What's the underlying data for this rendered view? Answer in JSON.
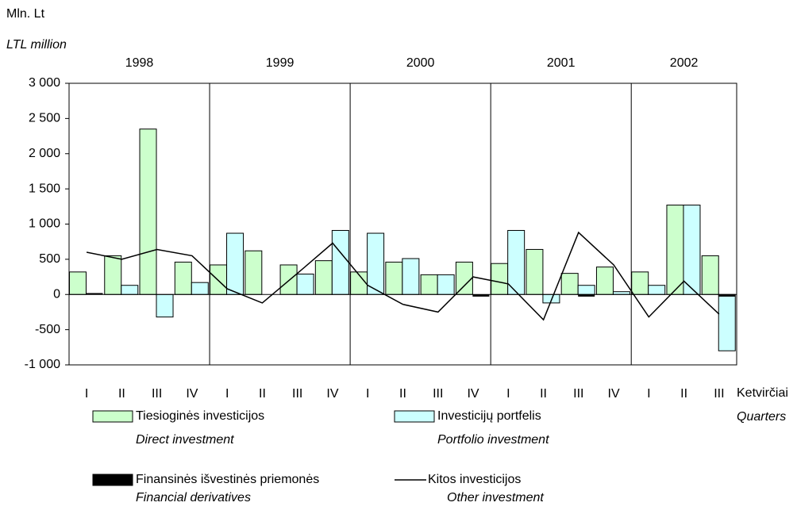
{
  "chart_data": {
    "type": "bar",
    "y_label": "Mln. Lt",
    "y_label_en": "LTL million",
    "x_label": "Ketvirčiai",
    "x_label_en": "Quarters",
    "years": [
      "1998",
      "1999",
      "2000",
      "2001",
      "2002"
    ],
    "categories": [
      "I",
      "II",
      "III",
      "IV",
      "I",
      "II",
      "III",
      "IV",
      "I",
      "II",
      "III",
      "IV",
      "I",
      "II",
      "III",
      "IV",
      "I",
      "II",
      "III"
    ],
    "ylim": [
      -1000,
      3000
    ],
    "yticks": [
      {
        "value": 3000,
        "label": "3 000"
      },
      {
        "value": 2500,
        "label": "2 500"
      },
      {
        "value": 2000,
        "label": "2 000"
      },
      {
        "value": 1500,
        "label": "1 500"
      },
      {
        "value": 1000,
        "label": "1 000"
      },
      500,
      0,
      -500,
      {
        "value": -1000,
        "label": "-1 000"
      }
    ],
    "grid": false,
    "series": [
      {
        "name": "Tiesioginės investicijos",
        "name_en": "Direct investment",
        "type": "bar",
        "slot": 0,
        "color": "#ccffcc",
        "values": [
          320,
          550,
          2350,
          460,
          420,
          620,
          420,
          480,
          320,
          460,
          280,
          460,
          440,
          640,
          300,
          390,
          320,
          1270,
          550
        ]
      },
      {
        "name": "Investicijų portfelis",
        "name_en": "Portfolio investment",
        "type": "bar",
        "slot": 1,
        "color": "#ccffff",
        "values": [
          0,
          130,
          -320,
          170,
          870,
          0,
          290,
          910,
          870,
          510,
          280,
          0,
          910,
          -120,
          130,
          40,
          130,
          1270,
          -800
        ]
      },
      {
        "name": "Finansinės išvestinės priemonės",
        "name_en": "Financial derivatives",
        "type": "bar",
        "slot": 1,
        "color": "#000000",
        "values": [
          20,
          0,
          0,
          0,
          0,
          0,
          0,
          0,
          0,
          0,
          0,
          -30,
          0,
          0,
          -30,
          0,
          0,
          0,
          -30
        ]
      },
      {
        "name": "Kitos investicijos",
        "name_en": "Other investment",
        "type": "line",
        "color": "#000000",
        "values": [
          600,
          500,
          640,
          550,
          80,
          -120,
          300,
          730,
          130,
          -140,
          -250,
          250,
          150,
          -360,
          880,
          420,
          -320,
          190,
          -280
        ]
      }
    ]
  }
}
